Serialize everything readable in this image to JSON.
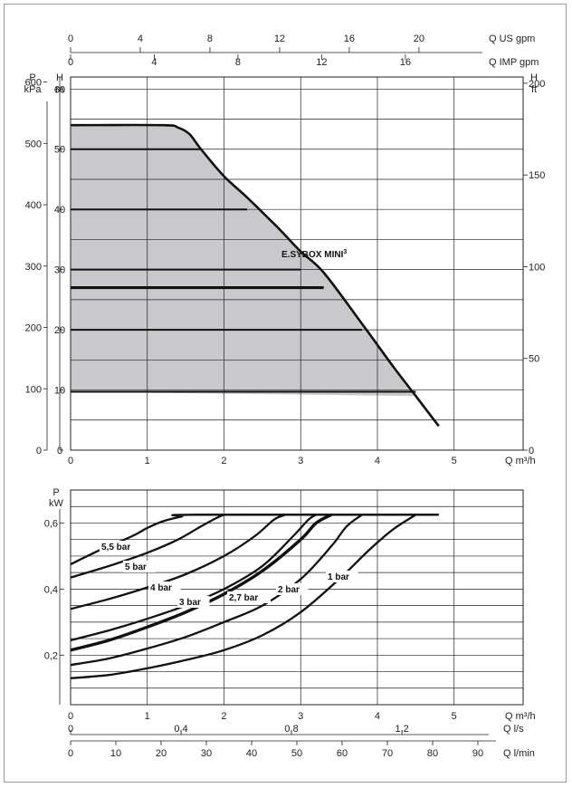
{
  "chart_data": [
    {
      "type": "area",
      "top_axes": [
        {
          "label": "Q US gpm",
          "ticks": [
            "0",
            "4",
            "8",
            "12",
            "16",
            "20"
          ],
          "values": [
            0,
            4,
            8,
            12,
            16,
            20
          ]
        },
        {
          "label": "Q IMP gpm",
          "ticks": [
            "0",
            "4",
            "8",
            "12",
            "16"
          ],
          "values": [
            0,
            4,
            8,
            12,
            16
          ]
        }
      ],
      "left_axes": [
        {
          "label_top": "P",
          "label_bottom": "kPa",
          "ticks": [
            "0",
            "100",
            "200",
            "300",
            "400",
            "500",
            "600"
          ],
          "values": [
            0,
            100,
            200,
            300,
            400,
            500,
            600
          ]
        },
        {
          "label_top": "H",
          "label_bottom": "m",
          "ticks": [
            "0",
            "10",
            "20",
            "30",
            "40",
            "50",
            "60"
          ],
          "values": [
            0,
            10,
            20,
            30,
            40,
            50,
            60
          ]
        }
      ],
      "right_axis": {
        "label_top": "H",
        "label_bottom": "ft",
        "ticks": [
          "0",
          "50",
          "100",
          "150",
          "200"
        ],
        "values": [
          0,
          50,
          100,
          150,
          200
        ]
      },
      "x_axis": {
        "label": "Q m³/h",
        "ticks": [
          "0",
          "1",
          "2",
          "3",
          "4",
          "5"
        ],
        "values": [
          0,
          1,
          2,
          3,
          4,
          5
        ],
        "xlim": [
          0,
          5.9
        ]
      },
      "ylim": [
        0,
        60
      ],
      "grid": true,
      "curve_label": "E.SYBOX MINI",
      "curve_label_sup": "3",
      "curve": {
        "x": [
          0,
          1.2,
          1.4,
          1.55,
          1.7,
          2.0,
          2.3,
          2.7,
          3.0,
          3.3,
          3.8,
          4.2,
          4.5,
          4.8
        ],
        "y": [
          54,
          54,
          53.6,
          52.5,
          50,
          45.5,
          42,
          37,
          33,
          29.5,
          21,
          14,
          9,
          4
        ]
      },
      "operating_area": {
        "lower_boundary_m": 9.7,
        "color": "#c9c9cb"
      },
      "pressure_lines_m": [
        {
          "y": 50,
          "x_end": 1.7
        },
        {
          "y": 40,
          "x_end": 2.3
        },
        {
          "y": 30,
          "x_end": 3.0
        },
        {
          "y": 27,
          "x_end": 3.3,
          "bold": true
        },
        {
          "y": 20,
          "x_end": 3.8
        },
        {
          "y": 9.7,
          "x_end": 4.5
        }
      ]
    },
    {
      "type": "line",
      "y_axis": {
        "label_top": "P",
        "label_bottom": "kW",
        "ticks": [
          "0,2",
          "0,4",
          "0,6"
        ],
        "values": [
          0.2,
          0.4,
          0.6
        ],
        "ylim": [
          0.05,
          0.7
        ]
      },
      "x_axes": [
        {
          "label": "Q m³/h",
          "ticks": [
            "0",
            "1",
            "2",
            "3",
            "4",
            "5"
          ],
          "values": [
            0,
            1,
            2,
            3,
            4,
            5
          ]
        },
        {
          "label": "Q l/s",
          "ticks": [
            "0",
            "0,4",
            "0,8",
            "1,2"
          ],
          "values": [
            0,
            0.4,
            0.8,
            1.2
          ]
        },
        {
          "label": "Q l/min",
          "ticks": [
            "0",
            "10",
            "20",
            "30",
            "40",
            "50",
            "60",
            "70",
            "80",
            "90"
          ],
          "values": [
            0,
            10,
            20,
            30,
            40,
            50,
            60,
            70,
            80,
            90
          ]
        }
      ],
      "xlim": [
        0,
        5.9
      ],
      "grid": true,
      "series": [
        {
          "name": "5,5 bar",
          "x": [
            0,
            0.4,
            0.8,
            1.0,
            1.2,
            1.45,
            1.6,
            4.8
          ],
          "y": [
            0.475,
            0.52,
            0.56,
            0.585,
            0.605,
            0.62,
            0.625,
            0.625
          ]
        },
        {
          "name": "5 bar",
          "x": [
            0,
            0.5,
            1.0,
            1.4,
            1.7,
            1.9,
            2.0
          ],
          "y": [
            0.435,
            0.47,
            0.51,
            0.55,
            0.59,
            0.615,
            0.625
          ]
        },
        {
          "name": "4 bar",
          "x": [
            0,
            0.5,
            1.0,
            1.5,
            2.0,
            2.4,
            2.65,
            2.8
          ],
          "y": [
            0.34,
            0.37,
            0.405,
            0.445,
            0.5,
            0.56,
            0.61,
            0.625
          ]
        },
        {
          "name": "3 bar",
          "x": [
            0,
            0.5,
            1.0,
            1.5,
            2.0,
            2.5,
            2.9,
            3.1,
            3.2
          ],
          "y": [
            0.245,
            0.275,
            0.31,
            0.35,
            0.4,
            0.47,
            0.56,
            0.61,
            0.625
          ]
        },
        {
          "name": "2,7 bar",
          "x": [
            0,
            0.5,
            1.0,
            1.5,
            2.0,
            2.5,
            3.0,
            3.2,
            3.4
          ],
          "y": [
            0.215,
            0.245,
            0.285,
            0.33,
            0.385,
            0.455,
            0.55,
            0.6,
            0.625
          ],
          "bold": true
        },
        {
          "name": "2 bar",
          "x": [
            0,
            0.5,
            1.0,
            1.5,
            2.0,
            2.5,
            3.0,
            3.4,
            3.6,
            3.8
          ],
          "y": [
            0.17,
            0.19,
            0.22,
            0.255,
            0.3,
            0.35,
            0.43,
            0.53,
            0.59,
            0.625
          ]
        },
        {
          "name": "1 bar",
          "x": [
            0,
            0.5,
            1.0,
            1.5,
            2.0,
            2.5,
            3.0,
            3.5,
            3.9,
            4.2,
            4.5
          ],
          "y": [
            0.13,
            0.14,
            0.16,
            0.185,
            0.215,
            0.26,
            0.33,
            0.43,
            0.52,
            0.58,
            0.625
          ]
        }
      ]
    }
  ]
}
